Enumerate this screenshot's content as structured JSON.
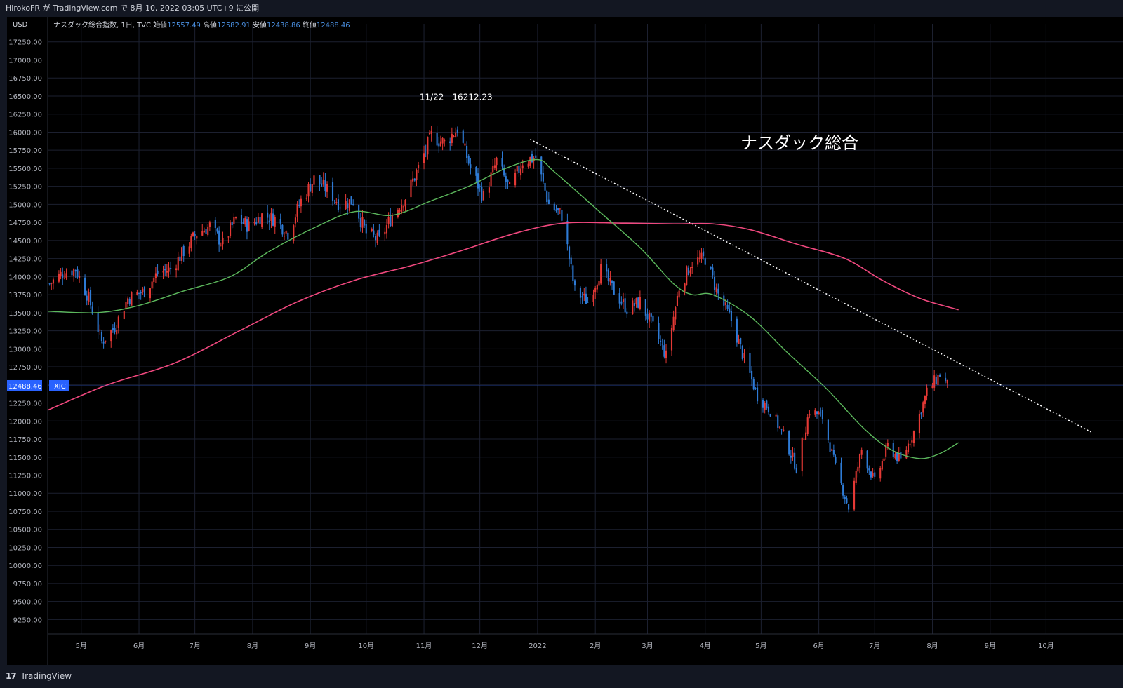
{
  "header": {
    "publish_line": "HirokoFR が TradingView.com で 8月 10, 2022 03:05 UTC+9 に公開"
  },
  "legend": {
    "symbol_line": "ナスダック総合指数, 1日, TVC",
    "open_label": "始値",
    "open_value": "12557.49",
    "high_label": "高値",
    "high_value": "12582.91",
    "low_label": "安値",
    "low_value": "12438.86",
    "close_label": "終値",
    "close_value": "12488.46"
  },
  "price_badge": {
    "value": "12488.46",
    "ticker": "IXIC"
  },
  "footer": {
    "brand": "TradingView",
    "brand_mark": "17"
  },
  "colors": {
    "background": "#000000",
    "up": "#e53935",
    "down": "#2e7bd6",
    "ma_short": "#5cb85c",
    "ma_long": "#f0487e",
    "trendline": "#ffffff",
    "badge": "#2962ff"
  },
  "chart_data": {
    "type": "candlestick",
    "title": "ナスダック総合",
    "currency_label": "USD",
    "y_ticks": [
      9250,
      9500,
      9750,
      10000,
      10250,
      10500,
      10750,
      11000,
      11250,
      11500,
      11750,
      12000,
      12250,
      12500,
      12750,
      13000,
      13250,
      13500,
      13750,
      14000,
      14250,
      14500,
      14750,
      15000,
      15250,
      15500,
      15750,
      16000,
      16250,
      16500,
      16750,
      17000,
      17250
    ],
    "ylim": [
      9050,
      17500
    ],
    "x_tick_labels": [
      {
        "label": "5月",
        "date": "2021-05-01"
      },
      {
        "label": "6月",
        "date": "2021-06-01"
      },
      {
        "label": "7月",
        "date": "2021-07-01"
      },
      {
        "label": "8月",
        "date": "2021-08-01"
      },
      {
        "label": "9月",
        "date": "2021-09-01"
      },
      {
        "label": "10月",
        "date": "2021-10-01"
      },
      {
        "label": "11月",
        "date": "2021-11-01"
      },
      {
        "label": "12月",
        "date": "2021-12-01"
      },
      {
        "label": "2022",
        "date": "2022-01-01"
      },
      {
        "label": "2月",
        "date": "2022-02-01"
      },
      {
        "label": "3月",
        "date": "2022-03-01"
      },
      {
        "label": "4月",
        "date": "2022-04-01"
      },
      {
        "label": "5月",
        "date": "2022-05-01"
      },
      {
        "label": "6月",
        "date": "2022-06-01"
      },
      {
        "label": "7月",
        "date": "2022-07-01"
      },
      {
        "label": "8月",
        "date": "2022-08-01"
      },
      {
        "label": "9月",
        "date": "2022-09-01"
      },
      {
        "label": "10月",
        "date": "2022-10-01"
      }
    ],
    "xlim": [
      "2021-04-13",
      "2022-10-31"
    ],
    "close_path": [
      [
        "2021-04-14",
        13900
      ],
      [
        "2021-04-21",
        14050
      ],
      [
        "2021-04-28",
        14100
      ],
      [
        "2021-05-05",
        13700
      ],
      [
        "2021-05-12",
        13100
      ],
      [
        "2021-05-19",
        13300
      ],
      [
        "2021-05-26",
        13700
      ],
      [
        "2021-06-04",
        13800
      ],
      [
        "2021-06-11",
        14050
      ],
      [
        "2021-06-18",
        14100
      ],
      [
        "2021-06-25",
        14350
      ],
      [
        "2021-07-02",
        14600
      ],
      [
        "2021-07-09",
        14700
      ],
      [
        "2021-07-16",
        14450
      ],
      [
        "2021-07-23",
        14800
      ],
      [
        "2021-07-30",
        14700
      ],
      [
        "2021-08-06",
        14850
      ],
      [
        "2021-08-13",
        14800
      ],
      [
        "2021-08-20",
        14600
      ],
      [
        "2021-08-27",
        15050
      ],
      [
        "2021-09-03",
        15350
      ],
      [
        "2021-09-10",
        15200
      ],
      [
        "2021-09-17",
        15000
      ],
      [
        "2021-09-24",
        15050
      ],
      [
        "2021-10-01",
        14600
      ],
      [
        "2021-10-08",
        14500
      ],
      [
        "2021-10-15",
        14850
      ],
      [
        "2021-10-22",
        15100
      ],
      [
        "2021-10-29",
        15500
      ],
      [
        "2021-11-05",
        15950
      ],
      [
        "2021-11-12",
        15850
      ],
      [
        "2021-11-19",
        16050
      ],
      [
        "2021-11-26",
        15500
      ],
      [
        "2021-12-03",
        15100
      ],
      [
        "2021-12-10",
        15600
      ],
      [
        "2021-12-17",
        15200
      ],
      [
        "2021-12-24",
        15600
      ],
      [
        "2021-12-31",
        15650
      ],
      [
        "2022-01-07",
        15000
      ],
      [
        "2022-01-14",
        14850
      ],
      [
        "2022-01-21",
        13800
      ],
      [
        "2022-01-28",
        13650
      ],
      [
        "2022-02-04",
        14100
      ],
      [
        "2022-02-11",
        13800
      ],
      [
        "2022-02-18",
        13550
      ],
      [
        "2022-02-25",
        13650
      ],
      [
        "2022-03-04",
        13300
      ],
      [
        "2022-03-11",
        12900
      ],
      [
        "2022-03-18",
        13850
      ],
      [
        "2022-03-25",
        14200
      ],
      [
        "2022-04-01",
        14250
      ],
      [
        "2022-04-08",
        13750
      ],
      [
        "2022-04-15",
        13400
      ],
      [
        "2022-04-22",
        12850
      ],
      [
        "2022-04-29",
        12350
      ],
      [
        "2022-05-06",
        12150
      ],
      [
        "2022-05-13",
        11800
      ],
      [
        "2022-05-20",
        11350
      ],
      [
        "2022-05-27",
        12150
      ],
      [
        "2022-06-03",
        12050
      ],
      [
        "2022-06-10",
        11350
      ],
      [
        "2022-06-17",
        10800
      ],
      [
        "2022-06-24",
        11600
      ],
      [
        "2022-07-01",
        11150
      ],
      [
        "2022-07-08",
        11650
      ],
      [
        "2022-07-15",
        11450
      ],
      [
        "2022-07-22",
        11850
      ],
      [
        "2022-07-29",
        12400
      ],
      [
        "2022-08-05",
        12650
      ],
      [
        "2022-08-09",
        12490
      ]
    ],
    "intraday_high": {
      "date": "2021-11-22",
      "value": 16212.23,
      "label": "11/22　16212.23"
    },
    "ma_short": [
      [
        "2021-04-13",
        13520
      ],
      [
        "2021-05-10",
        13500
      ],
      [
        "2021-06-01",
        13600
      ],
      [
        "2021-06-25",
        13800
      ],
      [
        "2021-07-20",
        14000
      ],
      [
        "2021-08-10",
        14350
      ],
      [
        "2021-09-05",
        14700
      ],
      [
        "2021-09-25",
        14900
      ],
      [
        "2021-10-15",
        14850
      ],
      [
        "2021-11-05",
        15050
      ],
      [
        "2021-11-25",
        15250
      ],
      [
        "2021-12-15",
        15500
      ],
      [
        "2022-01-01",
        15620
      ],
      [
        "2022-01-10",
        15450
      ],
      [
        "2022-02-01",
        14950
      ],
      [
        "2022-02-25",
        14400
      ],
      [
        "2022-03-15",
        13900
      ],
      [
        "2022-03-25",
        13750
      ],
      [
        "2022-04-05",
        13750
      ],
      [
        "2022-04-25",
        13450
      ],
      [
        "2022-05-15",
        12950
      ],
      [
        "2022-06-05",
        12450
      ],
      [
        "2022-06-25",
        11900
      ],
      [
        "2022-07-10",
        11600
      ],
      [
        "2022-07-25",
        11480
      ],
      [
        "2022-08-05",
        11550
      ],
      [
        "2022-08-15",
        11700
      ]
    ],
    "ma_long": [
      [
        "2021-04-13",
        12150
      ],
      [
        "2021-05-15",
        12500
      ],
      [
        "2021-06-20",
        12800
      ],
      [
        "2021-07-25",
        13250
      ],
      [
        "2021-08-25",
        13650
      ],
      [
        "2021-09-25",
        13950
      ],
      [
        "2021-10-25",
        14150
      ],
      [
        "2021-11-20",
        14350
      ],
      [
        "2021-12-20",
        14600
      ],
      [
        "2022-01-15",
        14740
      ],
      [
        "2022-02-15",
        14740
      ],
      [
        "2022-03-15",
        14730
      ],
      [
        "2022-04-05",
        14730
      ],
      [
        "2022-04-25",
        14650
      ],
      [
        "2022-05-20",
        14450
      ],
      [
        "2022-06-15",
        14250
      ],
      [
        "2022-07-05",
        13950
      ],
      [
        "2022-07-25",
        13700
      ],
      [
        "2022-08-15",
        13540
      ]
    ],
    "trendline": {
      "start": [
        "2021-12-28",
        15900
      ],
      "end": [
        "2022-10-25",
        11850
      ],
      "style": "dotted"
    },
    "last_price": 12488.46,
    "grid": true
  }
}
